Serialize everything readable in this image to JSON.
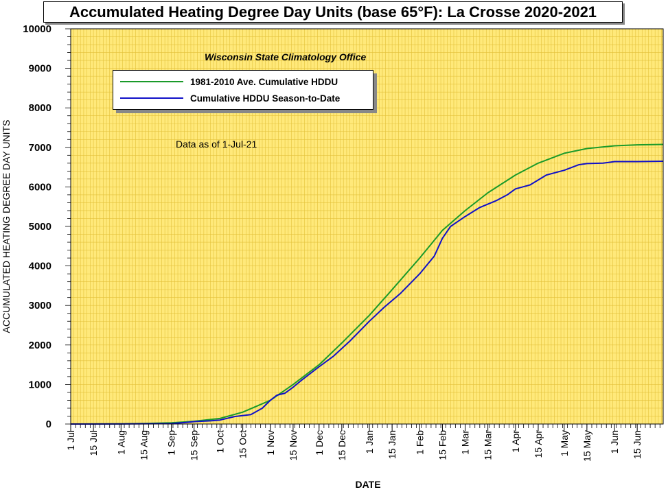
{
  "title": "Accumulated Heating Degree Day Units (base 65°F): La Crosse 2020-2021",
  "subtitle": "Wisconsin State Climatology Office",
  "note": "Data as of 1-Jul-21",
  "colors": {
    "plot_background": "#ffe97a",
    "grid": "#e3c13a",
    "average_line": "#1a9a2a",
    "season_line": "#1010c8"
  },
  "chart_data": {
    "type": "line",
    "title": "Accumulated Heating Degree Day Units (base 65°F): La Crosse 2020-2021",
    "xlabel": "DATE",
    "ylabel": "ACCUMULATED HEATING DEGREE DAY UNITS",
    "xlim": [
      "2020-07-01",
      "2021-07-01"
    ],
    "ylim": [
      0,
      10000
    ],
    "yticks": [
      0,
      1000,
      2000,
      3000,
      4000,
      5000,
      6000,
      7000,
      8000,
      9000,
      10000
    ],
    "xtick_dates": [
      "2020-07-01",
      "2020-07-15",
      "2020-08-01",
      "2020-08-15",
      "2020-09-01",
      "2020-09-15",
      "2020-10-01",
      "2020-10-15",
      "2020-11-01",
      "2020-11-15",
      "2020-12-01",
      "2020-12-15",
      "2021-01-01",
      "2021-01-15",
      "2021-02-01",
      "2021-02-15",
      "2021-03-01",
      "2021-03-15",
      "2021-04-01",
      "2021-04-15",
      "2021-05-01",
      "2021-05-15",
      "2021-06-01",
      "2021-06-15"
    ],
    "xtick_labels": [
      "1 Jul",
      "15 Jul",
      "1 Aug",
      "15 Aug",
      "1 Sep",
      "15 Sep",
      "1 Oct",
      "15 Oct",
      "1 Nov",
      "15 Nov",
      "1 Dec",
      "15 Dec",
      "1 Jan",
      "15 Jan",
      "1 Feb",
      "15 Feb",
      "1 Mar",
      "15 Mar",
      "1 Apr",
      "15 Apr",
      "1 May",
      "15 May",
      "1 Jun",
      "15 Jun"
    ],
    "grid": true,
    "legend_position": "top-left",
    "series": [
      {
        "name": "1981-2010 Ave. Cumulative HDDU",
        "color": "#1a9a2a",
        "x": [
          "2020-07-01",
          "2020-08-01",
          "2020-08-15",
          "2020-09-01",
          "2020-09-15",
          "2020-10-01",
          "2020-10-15",
          "2020-11-01",
          "2020-11-15",
          "2020-12-01",
          "2020-12-15",
          "2021-01-01",
          "2021-01-15",
          "2021-02-01",
          "2021-02-15",
          "2021-03-01",
          "2021-03-15",
          "2021-04-01",
          "2021-04-15",
          "2021-05-01",
          "2021-05-15",
          "2021-06-01",
          "2021-06-15",
          "2021-07-01"
        ],
        "y": [
          0,
          5,
          12,
          30,
          70,
          140,
          300,
          600,
          1000,
          1500,
          2050,
          2750,
          3400,
          4200,
          4900,
          5400,
          5850,
          6300,
          6600,
          6850,
          6970,
          7040,
          7065,
          7075
        ]
      },
      {
        "name": "Cumulative HDDU Season-to-Date",
        "color": "#1010c8",
        "x": [
          "2020-07-01",
          "2020-08-01",
          "2020-09-01",
          "2020-09-10",
          "2020-09-15",
          "2020-09-25",
          "2020-10-01",
          "2020-10-10",
          "2020-10-20",
          "2020-10-27",
          "2020-11-01",
          "2020-11-05",
          "2020-11-10",
          "2020-11-15",
          "2020-11-20",
          "2020-12-01",
          "2020-12-10",
          "2020-12-20",
          "2021-01-01",
          "2021-01-10",
          "2021-01-20",
          "2021-02-01",
          "2021-02-10",
          "2021-02-15",
          "2021-02-20",
          "2021-03-01",
          "2021-03-10",
          "2021-03-20",
          "2021-03-27",
          "2021-04-01",
          "2021-04-10",
          "2021-04-20",
          "2021-05-01",
          "2021-05-10",
          "2021-05-15",
          "2021-05-25",
          "2021-06-01",
          "2021-06-15",
          "2021-07-01"
        ],
        "y": [
          0,
          2,
          10,
          40,
          60,
          80,
          100,
          190,
          240,
          400,
          600,
          730,
          780,
          930,
          1100,
          1450,
          1720,
          2100,
          2600,
          2950,
          3300,
          3800,
          4250,
          4700,
          5000,
          5250,
          5480,
          5650,
          5800,
          5950,
          6050,
          6300,
          6420,
          6560,
          6590,
          6600,
          6640,
          6640,
          6650
        ]
      }
    ]
  }
}
